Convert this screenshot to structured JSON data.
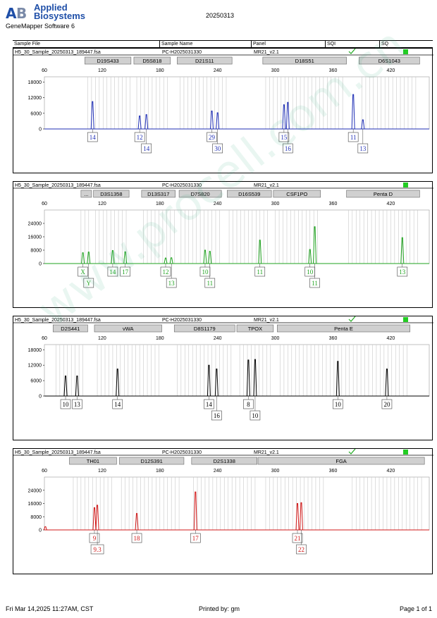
{
  "header": {
    "brand_line1": "Applied",
    "brand_line2": "Biosystems",
    "app_name": "GeneMapper Software 6",
    "date": "20250313"
  },
  "columns": {
    "sample_file": "Sample File",
    "sample_name": "Sample Name",
    "panel": "Panel",
    "sqi": "SQI",
    "sq": "SQ"
  },
  "footer": {
    "left": "Fri Mar 14,2025 11:27AM, CST",
    "center": "Printed by: gm",
    "right": "Page 1 of 1"
  },
  "watermark": "www.procell.com.cn",
  "colors": {
    "blue": "#1f2fb5",
    "green": "#1fa31f",
    "black": "#000000",
    "red": "#d01818",
    "bin": "#c8c8c8",
    "status": "#22cc22"
  },
  "chart_data": [
    {
      "type": "line",
      "dye": "blue",
      "sample_file": "H5_30_Sample_20250313_189447.fsa",
      "sample_name": "PC-H2025031330",
      "panel": "MR21_v2.1",
      "sqi_check": true,
      "xlim": [
        60,
        460
      ],
      "xticks": [
        60,
        120,
        180,
        240,
        300,
        360,
        420
      ],
      "ylim": [
        0,
        20000
      ],
      "yticks": [
        0,
        6000,
        12000,
        18000
      ],
      "markers": [
        {
          "label": "D19S433",
          "range": [
            102,
            150
          ]
        },
        {
          "label": "D5S818",
          "range": [
            153,
            191
          ]
        },
        {
          "label": "D21S11",
          "range": [
            198,
            255
          ]
        },
        {
          "label": "D18S51",
          "range": [
            287,
            374
          ]
        },
        {
          "label": "D6S1043",
          "range": [
            387,
            450
          ]
        }
      ],
      "peaks": [
        {
          "x": 110,
          "y": 10500
        },
        {
          "x": 159,
          "y": 5000
        },
        {
          "x": 166,
          "y": 5500
        },
        {
          "x": 234,
          "y": 6900
        },
        {
          "x": 240,
          "y": 6200
        },
        {
          "x": 309,
          "y": 9300
        },
        {
          "x": 313,
          "y": 10200
        },
        {
          "x": 381,
          "y": 13200
        },
        {
          "x": 391,
          "y": 3500
        }
      ],
      "alleles": [
        {
          "label": "14",
          "x": 110,
          "row": 0
        },
        {
          "label": "12",
          "x": 159,
          "row": 0
        },
        {
          "label": "14",
          "x": 166,
          "row": 1
        },
        {
          "label": "29",
          "x": 234,
          "row": 0
        },
        {
          "label": "30",
          "x": 240,
          "row": 1
        },
        {
          "label": "15",
          "x": 309,
          "row": 0
        },
        {
          "label": "16",
          "x": 313,
          "row": 1
        },
        {
          "label": "11",
          "x": 381,
          "row": 0
        },
        {
          "label": "13",
          "x": 391,
          "row": 1
        }
      ],
      "bins": [
        [
          105,
          150
        ],
        [
          156,
          188
        ],
        [
          201,
          252
        ],
        [
          290,
          372
        ],
        [
          390,
          448
        ]
      ]
    },
    {
      "type": "line",
      "dye": "green",
      "sample_file": "H5_30_Sample_20250313_189447.fsa",
      "sample_name": "PC-H2025031330",
      "panel": "MR21_v2.1",
      "sqi_check": false,
      "xlim": [
        60,
        460
      ],
      "xticks": [
        60,
        120,
        180,
        240,
        300,
        360,
        420
      ],
      "ylim": [
        0,
        32000
      ],
      "yticks": [
        0,
        8000,
        16000,
        24000
      ],
      "markers": [
        {
          "label": "...",
          "range": [
            98,
            109
          ]
        },
        {
          "label": "D3S1358",
          "range": [
            111,
            148
          ]
        },
        {
          "label": "D13S317",
          "range": [
            161,
            196
          ]
        },
        {
          "label": "D7S820",
          "range": [
            200,
            244
          ]
        },
        {
          "label": "D16S539",
          "range": [
            250,
            296
          ]
        },
        {
          "label": "CSF1PO",
          "range": [
            298,
            347
          ]
        },
        {
          "label": "Penta D",
          "range": [
            374,
            450
          ]
        }
      ],
      "peaks": [
        {
          "x": 100,
          "y": 6500
        },
        {
          "x": 106,
          "y": 6900
        },
        {
          "x": 131,
          "y": 7800
        },
        {
          "x": 144,
          "y": 7000
        },
        {
          "x": 186,
          "y": 3300
        },
        {
          "x": 192,
          "y": 3500
        },
        {
          "x": 227,
          "y": 8000
        },
        {
          "x": 232,
          "y": 7300
        },
        {
          "x": 284,
          "y": 14000
        },
        {
          "x": 336,
          "y": 8400
        },
        {
          "x": 341,
          "y": 22000
        },
        {
          "x": 432,
          "y": 15500
        }
      ],
      "alleles": [
        {
          "label": "X",
          "x": 100,
          "row": 0
        },
        {
          "label": "Y",
          "x": 106,
          "row": 1
        },
        {
          "label": "14",
          "x": 131,
          "row": 0
        },
        {
          "label": "17",
          "x": 144,
          "row": 0
        },
        {
          "label": "12",
          "x": 186,
          "row": 0
        },
        {
          "label": "13",
          "x": 192,
          "row": 1
        },
        {
          "label": "10",
          "x": 227,
          "row": 0
        },
        {
          "label": "11",
          "x": 232,
          "row": 1
        },
        {
          "label": "11",
          "x": 284,
          "row": 0
        },
        {
          "label": "10",
          "x": 336,
          "row": 0
        },
        {
          "label": "11",
          "x": 341,
          "row": 1
        },
        {
          "label": "13",
          "x": 432,
          "row": 0
        }
      ],
      "bins": [
        [
          98,
          109
        ],
        [
          113,
          147
        ],
        [
          163,
          195
        ],
        [
          202,
          242
        ],
        [
          252,
          294
        ],
        [
          300,
          345
        ],
        [
          376,
          448
        ]
      ]
    },
    {
      "type": "line",
      "dye": "black",
      "sample_file": "H5_30_Sample_20250313_189447.fsa",
      "sample_name": "PC-H2025031330",
      "panel": "MR21_v2.1",
      "sqi_check": true,
      "xlim": [
        60,
        460
      ],
      "xticks": [
        60,
        120,
        180,
        240,
        300,
        360,
        420
      ],
      "ylim": [
        0,
        20000
      ],
      "yticks": [
        0,
        6000,
        12000,
        18000
      ],
      "markers": [
        {
          "label": "D2S441",
          "range": [
            69,
            105
          ]
        },
        {
          "label": "vWA",
          "range": [
            112,
            182
          ]
        },
        {
          "label": "D8S1179",
          "range": [
            195,
            258
          ]
        },
        {
          "label": "TPOX",
          "range": [
            260,
            298
          ]
        },
        {
          "label": "Penta E",
          "range": [
            302,
            440
          ]
        }
      ],
      "peaks": [
        {
          "x": 82,
          "y": 7800
        },
        {
          "x": 94,
          "y": 7800
        },
        {
          "x": 136,
          "y": 10500
        },
        {
          "x": 231,
          "y": 12000
        },
        {
          "x": 239,
          "y": 10500
        },
        {
          "x": 272,
          "y": 14000
        },
        {
          "x": 279,
          "y": 14200
        },
        {
          "x": 365,
          "y": 13500
        },
        {
          "x": 416,
          "y": 10500
        }
      ],
      "alleles": [
        {
          "label": "10",
          "x": 82,
          "row": 0
        },
        {
          "label": "13",
          "x": 94,
          "row": 0
        },
        {
          "label": "14",
          "x": 136,
          "row": 0
        },
        {
          "label": "14",
          "x": 231,
          "row": 0
        },
        {
          "label": "16",
          "x": 239,
          "row": 1
        },
        {
          "label": "8",
          "x": 272,
          "row": 0
        },
        {
          "label": "10",
          "x": 279,
          "row": 1
        },
        {
          "label": "10",
          "x": 365,
          "row": 0
        },
        {
          "label": "20",
          "x": 416,
          "row": 0
        }
      ],
      "bins": [
        [
          72,
          103
        ],
        [
          115,
          180
        ],
        [
          198,
          256
        ],
        [
          263,
          296
        ],
        [
          305,
          438
        ]
      ]
    },
    {
      "type": "line",
      "dye": "red",
      "sample_file": "H5_30_Sample_20250313_189447.fsa",
      "sample_name": "PC-H2025031330",
      "panel": "MR21_v2.1",
      "sqi_check": true,
      "xlim": [
        60,
        460
      ],
      "xticks": [
        60,
        120,
        180,
        240,
        300,
        360,
        420
      ],
      "ylim": [
        0,
        32000
      ],
      "yticks": [
        0,
        8000,
        16000,
        24000
      ],
      "markers": [
        {
          "label": "TH01",
          "range": [
            86,
            135
          ]
        },
        {
          "label": "D12S391",
          "range": [
            138,
            205
          ]
        },
        {
          "label": "D2S1338",
          "range": [
            213,
            281
          ]
        },
        {
          "label": "FGA",
          "range": [
            282,
            455
          ]
        }
      ],
      "peaks": [
        {
          "x": 61,
          "y": 2000
        },
        {
          "x": 112,
          "y": 13500
        },
        {
          "x": 115,
          "y": 15000
        },
        {
          "x": 156,
          "y": 10000
        },
        {
          "x": 217,
          "y": 23000
        },
        {
          "x": 323,
          "y": 16000
        },
        {
          "x": 327,
          "y": 16500
        }
      ],
      "alleles": [
        {
          "label": "9",
          "x": 112,
          "row": 0
        },
        {
          "label": "9.3",
          "x": 115,
          "row": 1
        },
        {
          "label": "18",
          "x": 156,
          "row": 0
        },
        {
          "label": "17",
          "x": 217,
          "row": 0
        },
        {
          "label": "21",
          "x": 323,
          "row": 0
        },
        {
          "label": "22",
          "x": 327,
          "row": 1
        }
      ],
      "bins": [
        [
          90,
          132
        ],
        [
          140,
          203
        ],
        [
          215,
          279
        ],
        [
          290,
          352
        ],
        [
          380,
          452
        ]
      ]
    }
  ]
}
